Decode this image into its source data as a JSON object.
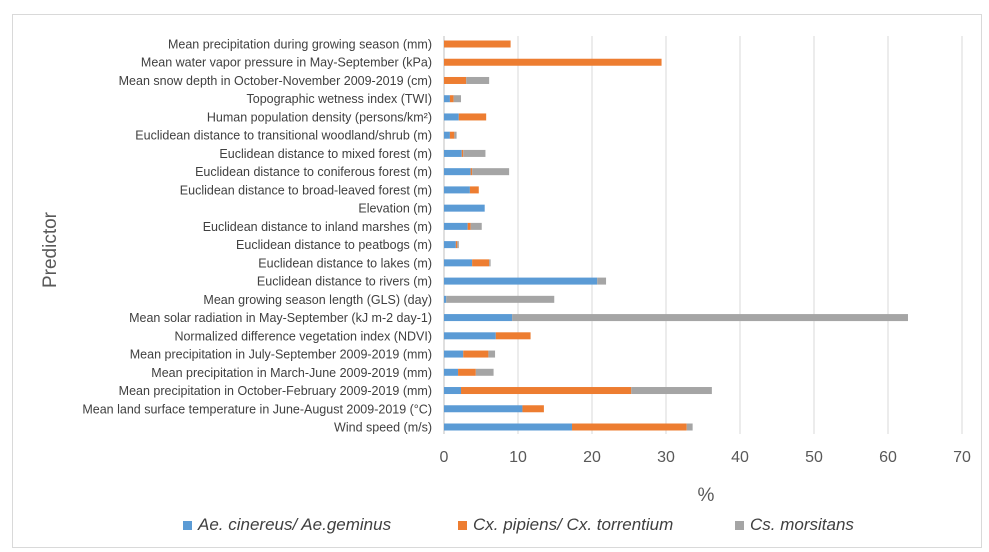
{
  "chart_data": {
    "type": "bar",
    "orientation": "horizontal",
    "stacked": true,
    "xlabel": "%",
    "ylabel": "Predictor",
    "xlim": [
      0,
      70
    ],
    "xticks": [
      "0",
      "10",
      "20",
      "30",
      "40",
      "50",
      "60",
      "70"
    ],
    "grid": "vertical",
    "legend_position": "bottom",
    "categories": [
      "Mean precipitation during growing season (mm)",
      "Mean water vapor pressure in May-September (kPa)",
      "Mean snow depth in October-November 2009-2019 (cm)",
      "Topographic wetness index (TWI)",
      "Human population density (persons/km²)",
      "Euclidean distance to transitional woodland/shrub (m)",
      "Euclidean distance to mixed forest (m)",
      "Euclidean distance to coniferous forest (m)",
      "Euclidean distance to broad-leaved forest (m)",
      "Elevation (m)",
      "Euclidean distance to inland marshes (m)",
      "Euclidean distance to peatbogs (m)",
      "Euclidean distance to lakes (m)",
      "Euclidean distance to rivers (m)",
      "Mean growing season length (GLS) (day)",
      "Mean solar radiation in May-September (kJ m-2 day-1)",
      "Normalized difference vegetation index (NDVI)",
      "Mean precipitation in July-September 2009-2019 (mm)",
      "Mean precipitation in March-June 2009-2019 (mm)",
      "Mean precipitation in October-February 2009-2019 (mm)",
      "Mean land surface temperature in June-August 2009-2019 (°C)",
      "Wind speed (m/s)"
    ],
    "series": [
      {
        "name": "Ae. cinereus/ Ae.geminus",
        "color": "#5b9bd5",
        "values": [
          0,
          0,
          0,
          0.8,
          2.0,
          0.8,
          2.4,
          3.6,
          3.5,
          5.5,
          3.2,
          1.6,
          3.8,
          20.7,
          0.3,
          9.2,
          7.0,
          2.6,
          1.9,
          2.3,
          10.6,
          17.3
        ]
      },
      {
        "name": "Cx. pipiens/ Cx. torrentium",
        "color": "#ed7d31",
        "values": [
          9.0,
          29.4,
          3.0,
          0.5,
          3.7,
          0.6,
          0.2,
          0.2,
          1.2,
          0,
          0.4,
          0.2,
          2.3,
          0,
          0,
          0,
          4.7,
          3.4,
          2.4,
          23.0,
          2.9,
          15.5
        ]
      },
      {
        "name": "Cs. morsitans",
        "color": "#a5a5a5",
        "values": [
          0,
          0,
          3.1,
          1.0,
          0,
          0.3,
          3.0,
          5.0,
          0,
          0,
          1.5,
          0.2,
          0.2,
          1.2,
          14.6,
          53.5,
          0,
          0.9,
          2.4,
          10.9,
          0,
          0.8
        ]
      }
    ]
  }
}
